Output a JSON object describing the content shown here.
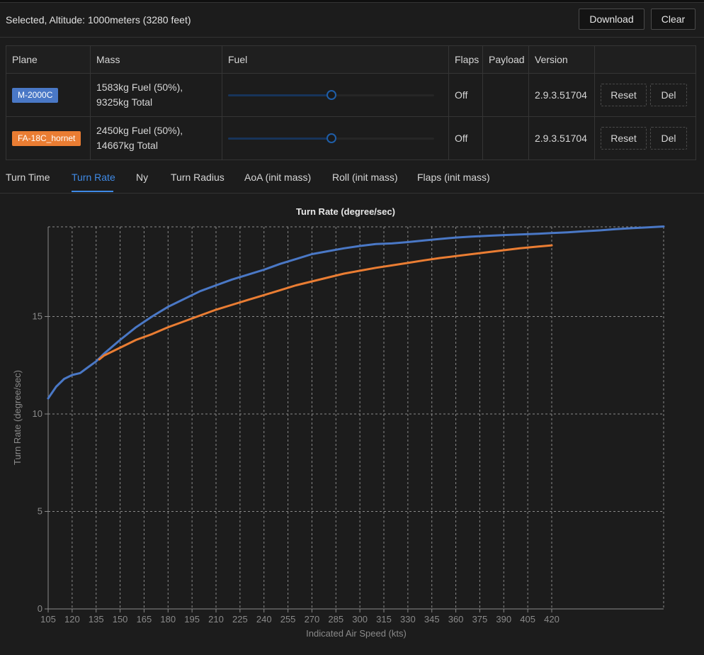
{
  "header": {
    "status": "Selected, Altitude: 1000meters (3280 feet)",
    "download_label": "Download",
    "clear_label": "Clear"
  },
  "table": {
    "columns": [
      "Plane",
      "Mass",
      "Fuel",
      "Flaps",
      "Payload",
      "Version",
      ""
    ],
    "rows": [
      {
        "plane": "M-2000C",
        "plane_color": "#4a78c6",
        "mass": "1583kg Fuel (50%), 9325kg Total",
        "fuel_fraction": 0.5,
        "flaps": "Off",
        "payload": "",
        "version": "2.9.3.51704",
        "reset": "Reset",
        "del": "Del"
      },
      {
        "plane": "FA-18C_hornet",
        "plane_color": "#ea7d33",
        "mass": "2450kg Fuel (50%), 14667kg Total",
        "fuel_fraction": 0.5,
        "flaps": "Off",
        "payload": "",
        "version": "2.9.3.51704",
        "reset": "Reset",
        "del": "Del"
      }
    ]
  },
  "tabs": [
    "Turn Time",
    "Turn Rate",
    "Ny",
    "Turn Radius",
    "AoA (init mass)",
    "Roll (init mass)",
    "Flaps (init mass)"
  ],
  "active_tab": "Turn Rate",
  "chart_data": {
    "type": "line",
    "title": "Turn Rate (degree/sec)",
    "xlabel": "Indicated Air Speed (kts)",
    "ylabel": "Turn Rate (degree/sec)",
    "xticks": [
      105,
      120,
      135,
      150,
      165,
      180,
      195,
      210,
      225,
      240,
      255,
      270,
      285,
      300,
      315,
      330,
      345,
      360,
      375,
      390,
      405,
      420
    ],
    "yticks": [
      0,
      5,
      10,
      15
    ],
    "xlim": [
      105,
      490
    ],
    "ylim": [
      0,
      19.6
    ],
    "grid": true,
    "series": [
      {
        "name": "M-2000C",
        "color": "#4a78c6",
        "points": [
          [
            105,
            10.8
          ],
          [
            110,
            11.4
          ],
          [
            115,
            11.8
          ],
          [
            120,
            12.0
          ],
          [
            125,
            12.1
          ],
          [
            130,
            12.4
          ],
          [
            135,
            12.7
          ],
          [
            140,
            13.1
          ],
          [
            150,
            13.8
          ],
          [
            160,
            14.45
          ],
          [
            170,
            15.0
          ],
          [
            180,
            15.5
          ],
          [
            190,
            15.9
          ],
          [
            200,
            16.3
          ],
          [
            210,
            16.6
          ],
          [
            220,
            16.9
          ],
          [
            230,
            17.15
          ],
          [
            240,
            17.4
          ],
          [
            250,
            17.7
          ],
          [
            260,
            17.95
          ],
          [
            270,
            18.2
          ],
          [
            280,
            18.35
          ],
          [
            290,
            18.5
          ],
          [
            300,
            18.62
          ],
          [
            310,
            18.72
          ],
          [
            320,
            18.75
          ],
          [
            330,
            18.82
          ],
          [
            340,
            18.9
          ],
          [
            350,
            18.98
          ],
          [
            360,
            19.05
          ],
          [
            370,
            19.1
          ],
          [
            380,
            19.14
          ],
          [
            390,
            19.18
          ],
          [
            400,
            19.21
          ],
          [
            410,
            19.24
          ],
          [
            420,
            19.28
          ],
          [
            430,
            19.32
          ],
          [
            440,
            19.37
          ],
          [
            450,
            19.42
          ],
          [
            460,
            19.48
          ],
          [
            470,
            19.53
          ],
          [
            480,
            19.57
          ],
          [
            490,
            19.62
          ]
        ]
      },
      {
        "name": "FA-18C_hornet",
        "color": "#ea7d33",
        "points": [
          [
            137,
            12.8
          ],
          [
            140,
            13.0
          ],
          [
            150,
            13.4
          ],
          [
            160,
            13.8
          ],
          [
            170,
            14.1
          ],
          [
            180,
            14.45
          ],
          [
            190,
            14.75
          ],
          [
            200,
            15.05
          ],
          [
            210,
            15.35
          ],
          [
            220,
            15.6
          ],
          [
            230,
            15.85
          ],
          [
            240,
            16.1
          ],
          [
            250,
            16.35
          ],
          [
            260,
            16.6
          ],
          [
            270,
            16.8
          ],
          [
            280,
            17.0
          ],
          [
            290,
            17.2
          ],
          [
            300,
            17.35
          ],
          [
            310,
            17.5
          ],
          [
            320,
            17.62
          ],
          [
            330,
            17.75
          ],
          [
            340,
            17.88
          ],
          [
            350,
            18.0
          ],
          [
            360,
            18.1
          ],
          [
            370,
            18.2
          ],
          [
            380,
            18.3
          ],
          [
            390,
            18.4
          ],
          [
            400,
            18.5
          ],
          [
            410,
            18.58
          ],
          [
            420,
            18.65
          ]
        ]
      }
    ]
  }
}
